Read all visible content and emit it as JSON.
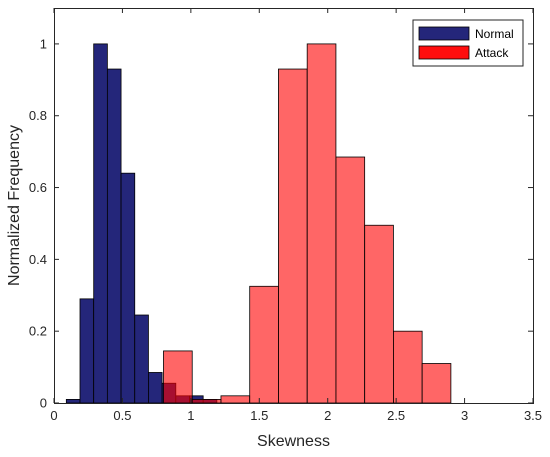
{
  "chart_data": {
    "type": "bar",
    "xlabel": "Skewness",
    "ylabel": "Normalized Frequency",
    "xlim": [
      0,
      3.5
    ],
    "ylim": [
      0,
      1.1
    ],
    "xticks": [
      0,
      0.5,
      1,
      1.5,
      2,
      2.5,
      3,
      3.5
    ],
    "xtick_labels": [
      "0",
      "0.5",
      "1",
      "1.5",
      "2",
      "2.5",
      "3",
      "3.5"
    ],
    "yticks": [
      0,
      0.2,
      0.4,
      0.6,
      0.8,
      1
    ],
    "ytick_labels": [
      "0",
      "0.2",
      "0.4",
      "0.6",
      "0.8",
      "1"
    ],
    "grid": false,
    "legend_position": "top-right",
    "series": [
      {
        "name": "Normal",
        "color": "#24267a",
        "opacity": 1,
        "bins": [
          {
            "x0": 0.09,
            "x1": 0.19,
            "value": 0.01
          },
          {
            "x0": 0.19,
            "x1": 0.29,
            "value": 0.29
          },
          {
            "x0": 0.29,
            "x1": 0.39,
            "value": 1.0
          },
          {
            "x0": 0.39,
            "x1": 0.49,
            "value": 0.93
          },
          {
            "x0": 0.49,
            "x1": 0.59,
            "value": 0.64
          },
          {
            "x0": 0.59,
            "x1": 0.69,
            "value": 0.245
          },
          {
            "x0": 0.69,
            "x1": 0.79,
            "value": 0.085
          },
          {
            "x0": 0.79,
            "x1": 0.89,
            "value": 0.055
          },
          {
            "x0": 0.89,
            "x1": 0.99,
            "value": 0.02
          },
          {
            "x0": 0.99,
            "x1": 1.09,
            "value": 0.02
          },
          {
            "x0": 1.09,
            "x1": 1.19,
            "value": 0.01
          }
        ]
      },
      {
        "name": "Attack",
        "color": "#ff0000",
        "opacity": 0.6,
        "bins": [
          {
            "x0": 0.8,
            "x1": 1.01,
            "value": 0.145
          },
          {
            "x0": 1.01,
            "x1": 1.22,
            "value": 0.01
          },
          {
            "x0": 1.22,
            "x1": 1.43,
            "value": 0.02
          },
          {
            "x0": 1.43,
            "x1": 1.64,
            "value": 0.325
          },
          {
            "x0": 1.64,
            "x1": 1.85,
            "value": 0.93
          },
          {
            "x0": 1.85,
            "x1": 2.06,
            "value": 1.0
          },
          {
            "x0": 2.06,
            "x1": 2.27,
            "value": 0.685
          },
          {
            "x0": 2.27,
            "x1": 2.48,
            "value": 0.495
          },
          {
            "x0": 2.48,
            "x1": 2.69,
            "value": 0.2
          },
          {
            "x0": 2.69,
            "x1": 2.9,
            "value": 0.11
          }
        ]
      }
    ]
  }
}
